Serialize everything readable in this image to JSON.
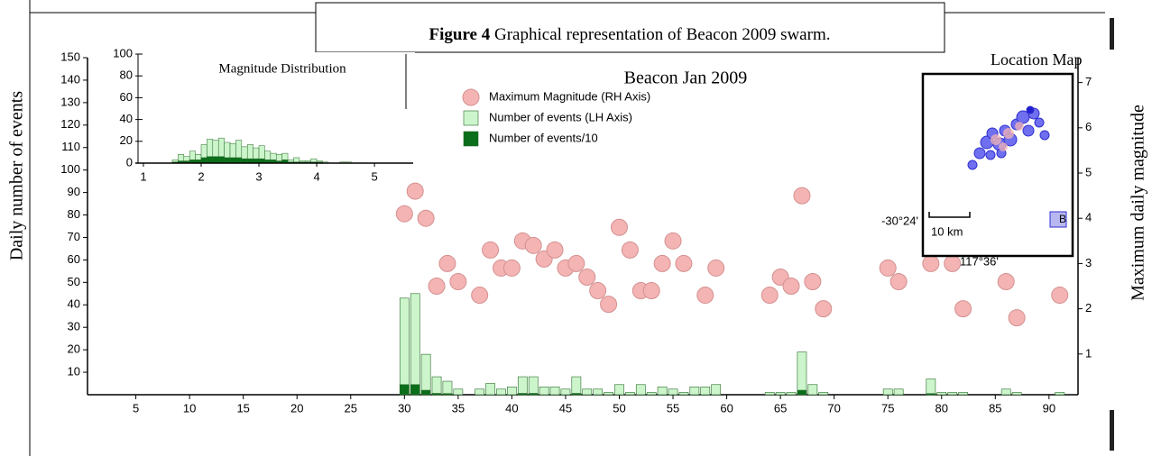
{
  "caption": {
    "label": "Figure 4",
    "text": "Graphical representation of Beacon 2009 swarm."
  },
  "chart_data": [
    {
      "type": "combo",
      "title": "Beacon Jan 2009",
      "ylabel": "Daily number of events",
      "y2label": "Maximum daily magnitude",
      "xlim": [
        0.5,
        92.7
      ],
      "xticks": [
        5,
        10,
        15,
        20,
        25,
        30,
        35,
        40,
        45,
        50,
        55,
        60,
        65,
        70,
        75,
        80,
        85,
        90
      ],
      "ylim": [
        0,
        150
      ],
      "yticks": [
        10,
        20,
        30,
        40,
        50,
        60,
        70,
        80,
        90,
        100,
        110,
        120,
        130,
        140,
        150
      ],
      "y2lim": [
        0.1,
        7.55
      ],
      "y2ticks": [
        1,
        2,
        3,
        4,
        5,
        6,
        7
      ],
      "grid": false,
      "series": [
        {
          "name": "Maximum Magnitude (RH Axis)",
          "type": "scatter",
          "axis": "y2",
          "color": "#f4b4b4",
          "x": [
            30,
            31,
            32,
            33,
            34,
            35,
            37,
            38,
            39,
            40,
            41,
            42,
            43,
            44,
            45,
            46,
            47,
            48,
            49,
            50,
            51,
            52,
            53,
            54,
            55,
            56,
            58,
            59,
            64,
            65,
            66,
            67,
            68,
            69,
            75,
            76,
            79,
            81,
            82,
            86,
            87,
            91
          ],
          "values": [
            4.1,
            4.6,
            4.0,
            2.5,
            3.0,
            2.6,
            2.3,
            3.3,
            2.9,
            2.9,
            3.5,
            3.4,
            3.1,
            3.3,
            2.9,
            3.0,
            2.7,
            2.4,
            2.1,
            3.8,
            3.3,
            2.4,
            2.4,
            3.0,
            3.5,
            3.0,
            2.3,
            2.9,
            2.3,
            2.7,
            2.5,
            4.5,
            2.6,
            2.0,
            2.9,
            2.6,
            3.0,
            3.0,
            2.0,
            2.6,
            1.8,
            2.3
          ]
        },
        {
          "name": "Number of events (LH Axis)",
          "type": "bar",
          "color": "#ccf5cc",
          "x": [
            30,
            31,
            32,
            33,
            34,
            35,
            37,
            38,
            39,
            40,
            41,
            42,
            43,
            44,
            45,
            46,
            47,
            48,
            49,
            50,
            51,
            52,
            53,
            54,
            55,
            56,
            57,
            58,
            59,
            64,
            65,
            66,
            67,
            68,
            69,
            75,
            76,
            79,
            80,
            81,
            82,
            86,
            87,
            91
          ],
          "values": [
            43,
            45,
            18,
            8,
            6,
            2.5,
            2.5,
            5,
            2.5,
            3.5,
            8,
            8,
            3.5,
            3.5,
            2.5,
            8,
            2.5,
            2.5,
            1,
            4.5,
            1,
            4.5,
            1,
            3.5,
            2.5,
            1,
            3.5,
            3.5,
            4.5,
            1,
            1,
            1,
            19,
            4.5,
            1,
            2.5,
            2.5,
            7,
            1,
            1,
            1,
            2.5,
            1,
            1
          ]
        },
        {
          "name": "Number of events/10",
          "type": "bar",
          "color": "#0a6e1a",
          "x": [
            30,
            31,
            32,
            33,
            34,
            41,
            42,
            46,
            67,
            79
          ],
          "values": [
            4.5,
            4.5,
            2,
            0.6,
            0.5,
            0.6,
            0.6,
            0.6,
            2,
            0.5
          ]
        }
      ]
    },
    {
      "type": "histogram",
      "title": "Magnitude Distribution",
      "xlim": [
        0.86,
        5.67
      ],
      "xticks": [
        1,
        2,
        3,
        4,
        5
      ],
      "ylim": [
        0,
        100
      ],
      "yticks": [
        0,
        20,
        40,
        60,
        80,
        100
      ],
      "bins": [
        1.4,
        1.5,
        1.6,
        1.7,
        1.8,
        1.9,
        2.0,
        2.1,
        2.2,
        2.3,
        2.4,
        2.5,
        2.6,
        2.7,
        2.8,
        2.9,
        3.0,
        3.1,
        3.2,
        3.3,
        3.4,
        3.5,
        3.6,
        3.7,
        3.8,
        3.9,
        4.0,
        4.1,
        4.2,
        4.3,
        4.4,
        4.5,
        4.6
      ],
      "series": [
        {
          "color": "#ccf5cc",
          "values": [
            0,
            3,
            8,
            6,
            11,
            8,
            17,
            22,
            21,
            23,
            19,
            18,
            21,
            15,
            17,
            14,
            16,
            11,
            9,
            8,
            9,
            3,
            5,
            2,
            2,
            4,
            2,
            1,
            0,
            0,
            1,
            1
          ]
        },
        {
          "color": "#0a6e1a",
          "values": [
            0,
            1,
            2,
            2,
            3,
            3,
            5,
            6,
            6,
            6,
            5,
            5,
            5,
            4,
            4,
            4,
            4,
            3,
            3,
            2,
            3,
            1,
            1,
            1,
            1,
            1,
            1,
            0,
            0,
            0,
            0,
            0
          ]
        }
      ]
    }
  ],
  "location_map": {
    "title": "Location Map",
    "latitude_label": "-30°24'",
    "longitude_label": "117°36'",
    "scale_label": "10 km",
    "corner_label": "B"
  }
}
